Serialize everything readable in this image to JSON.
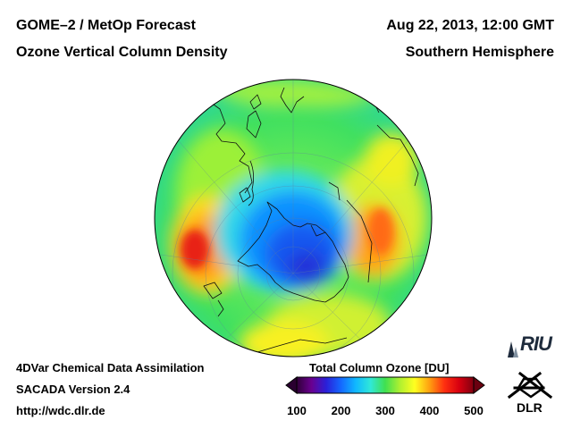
{
  "header": {
    "title_line1": "GOME–2 / MetOp Forecast",
    "title_line2": "Ozone Vertical Column Density",
    "date": "Aug 22, 2013, 12:00 GMT",
    "region": "Southern Hemisphere"
  },
  "footer": {
    "line1": "4DVar Chemical Data Assimilation",
    "line2": "SACADA Version 2.4",
    "line3": "http://wdc.dlr.de"
  },
  "colorbar": {
    "title": "Total Column Ozone [DU]",
    "range": [
      100,
      500
    ],
    "ticks": [
      "100",
      "200",
      "300",
      "400",
      "500"
    ],
    "colors": [
      "#300038",
      "#6a0090",
      "#2a20d8",
      "#1468ff",
      "#10b8ff",
      "#30e8d8",
      "#40e050",
      "#b0f030",
      "#ffff20",
      "#ffa010",
      "#ff3010",
      "#d80010",
      "#800010"
    ]
  },
  "logos": {
    "riu": "RIU",
    "dlr": "DLR"
  },
  "map": {
    "projection": "orthographic, south-pole centered",
    "ozone_hole_min_du": 190,
    "background_du": 310,
    "high_regions": [
      {
        "name": "south-atlantic-maximum",
        "du": 440
      },
      {
        "name": "south-indian-ocean-maximum",
        "du": 390
      }
    ]
  }
}
